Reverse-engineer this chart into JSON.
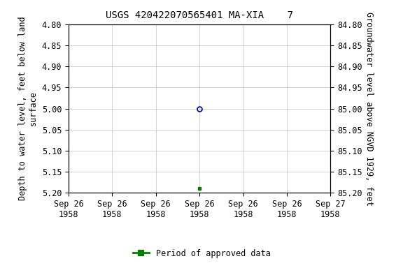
{
  "title": "USGS 420422070565401 MA-XIA    7",
  "ylabel_left_line1": "Depth to water level, feet below land",
  "ylabel_left_line2": "surface",
  "ylabel_right": "Groundwater level above NGVD 1929, feet",
  "ylim_left": [
    4.8,
    5.2
  ],
  "ylim_right": [
    84.8,
    85.2
  ],
  "y_ticks_left": [
    4.8,
    4.85,
    4.9,
    4.95,
    5.0,
    5.05,
    5.1,
    5.15,
    5.2
  ],
  "y_ticks_right": [
    84.8,
    84.85,
    84.9,
    84.95,
    85.0,
    85.05,
    85.1,
    85.15,
    85.2
  ],
  "x_tick_positions": [
    0,
    4,
    8,
    12,
    16,
    20,
    24
  ],
  "x_tick_labels": [
    "Sep 26\n1958",
    "Sep 26\n1958",
    "Sep 26\n1958",
    "Sep 26\n1958",
    "Sep 26\n1958",
    "Sep 26\n1958",
    "Sep 27\n1958"
  ],
  "data_x_circle_hour": 12,
  "data_y_circle": 5.0,
  "data_x_square_hour": 12,
  "data_y_square": 5.19,
  "circle_color": "#0000cc",
  "square_color": "#008000",
  "background_color": "#ffffff",
  "grid_color": "#c0c0c0",
  "legend_label": "Period of approved data",
  "title_fontsize": 10,
  "label_fontsize": 8.5,
  "tick_fontsize": 8.5
}
